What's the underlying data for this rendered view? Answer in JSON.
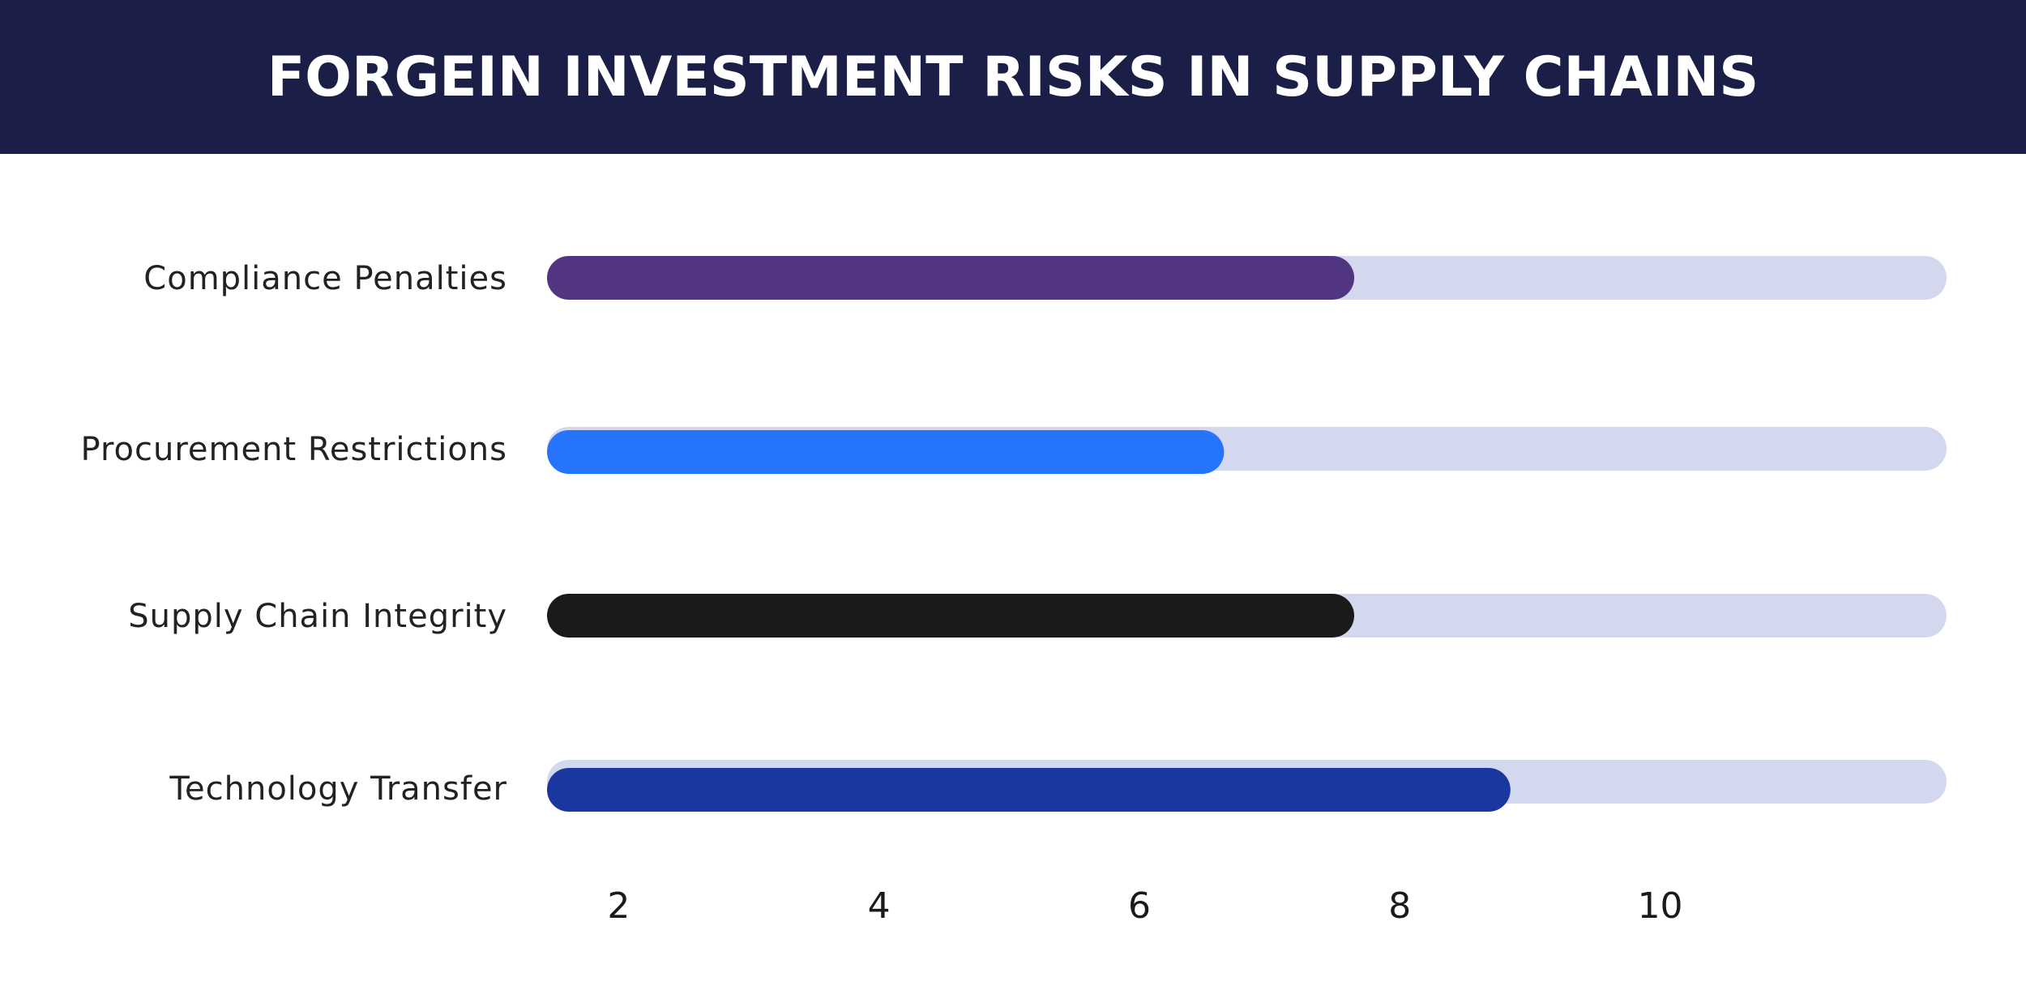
{
  "header": {
    "title": "FORGEIN INVESTMENT RISKS IN SUPPLY CHAINS"
  },
  "chart_data": {
    "type": "bar",
    "orientation": "horizontal",
    "title": "FORGEIN INVESTMENT RISKS IN SUPPLY CHAINS",
    "categories": [
      "Compliance Penalties",
      "Procurement Restrictions",
      "Supply Chain Integrity",
      "Technology Transfer"
    ],
    "values": [
      7.65,
      6.65,
      7.65,
      8.85
    ],
    "colors": [
      "#523580",
      "#2574fb",
      "#1a1a1a",
      "#1a37a0"
    ],
    "track_color": "#d3d8ee",
    "xlim": [
      1.45,
      12.2
    ],
    "xticks": [
      2,
      4,
      6,
      8,
      10
    ],
    "xlabel": "",
    "ylabel": "",
    "grid": false,
    "legend": false
  }
}
